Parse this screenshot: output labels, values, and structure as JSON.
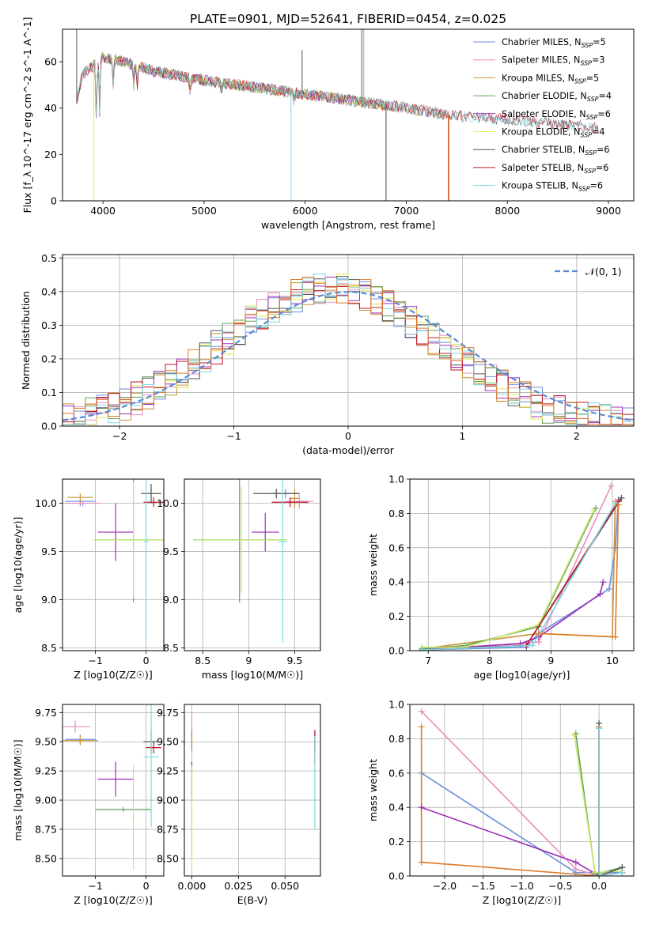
{
  "figure": {
    "title": "PLATE=0901, MJD=52641, FIBERID=0454, z=0.025"
  },
  "chart_data": [
    {
      "id": "spectrum",
      "type": "line",
      "xlabel": "wavelength [Angstrom, rest frame]",
      "ylabel": "Flux [f_λ 10^-17 erg cm^-2 s^-1 A^-1]",
      "xlim": [
        3600,
        9250
      ],
      "ylim": [
        0,
        74
      ],
      "xticks": [
        4000,
        5000,
        6000,
        7000,
        8000,
        9000
      ],
      "yticks": [
        0,
        20,
        40,
        60
      ],
      "grid": false,
      "legend_position": "top-right",
      "series": [
        {
          "name": "Chabrier MILES, N_SSP=5",
          "legend": [
            "Chabrier MILES, N",
            "SSP",
            "=5"
          ],
          "color": "#6b8fd9",
          "range": [
            3740,
            7400
          ]
        },
        {
          "name": "Salpeter MILES, N_SSP=3",
          "legend": [
            "Salpeter MILES, N",
            "SSP",
            "=3"
          ],
          "color": "#e88fbe",
          "range": [
            3740,
            7400
          ]
        },
        {
          "name": "Kroupa MILES, N_SSP=5",
          "legend": [
            "Kroupa MILES, N",
            "SSP",
            "=5"
          ],
          "color": "#c8923a",
          "range": [
            3740,
            7400
          ]
        },
        {
          "name": "Chabrier ELODIE, N_SSP=4",
          "legend": [
            "Chabrier ELODIE, N",
            "SSP",
            "=4"
          ],
          "color": "#62a05a",
          "range": [
            3900,
            6800
          ]
        },
        {
          "name": "Salpeter ELODIE, N_SSP=6",
          "legend": [
            "Salpeter ELODIE, N",
            "SSP",
            "=6"
          ],
          "color": "#9b30b8",
          "range": [
            3900,
            6800
          ]
        },
        {
          "name": "Kroupa ELODIE, N_SSP=4",
          "legend": [
            "Kroupa ELODIE, N",
            "SSP",
            "=4"
          ],
          "color": "#e4e85a",
          "range": [
            3900,
            6800
          ]
        },
        {
          "name": "Chabrier STELIB, N_SSP=6",
          "legend": [
            "Chabrier STELIB, N",
            "SSP",
            "=6"
          ],
          "color": "#555555",
          "range": [
            3740,
            8900
          ]
        },
        {
          "name": "Salpeter STELIB, N_SSP=6",
          "legend": [
            "Salpeter STELIB, N",
            "SSP",
            "=6"
          ],
          "color": "#c0152a",
          "range": [
            3740,
            8900
          ]
        },
        {
          "name": "Kroupa STELIB, N_SSP=6",
          "legend": [
            "Kroupa STELIB, N",
            "SSP",
            "=6"
          ],
          "color": "#7fd8e0",
          "range": [
            3740,
            8900
          ]
        }
      ],
      "continuum": [
        [
          3740,
          42
        ],
        [
          3800,
          55
        ],
        [
          3900,
          58
        ],
        [
          4000,
          62
        ],
        [
          4200,
          60
        ],
        [
          4500,
          56
        ],
        [
          5000,
          52
        ],
        [
          5500,
          49
        ],
        [
          6000,
          46
        ],
        [
          6500,
          43
        ],
        [
          7000,
          40
        ],
        [
          7400,
          37
        ],
        [
          8000,
          35
        ],
        [
          8500,
          33
        ],
        [
          9000,
          31
        ]
      ]
    },
    {
      "id": "residuals",
      "type": "histogram",
      "xlabel": "(data-model)/error",
      "ylabel": "Normed distribution",
      "xlim": [
        -2.5,
        2.5
      ],
      "ylim": [
        0,
        0.51
      ],
      "xticks": [
        -2,
        -1,
        0,
        1,
        2
      ],
      "yticks": [
        0.0,
        0.1,
        0.2,
        0.3,
        0.4,
        0.5
      ],
      "grid": true,
      "legend_position": "top-right",
      "normal_label": "𝒩(0, 1)",
      "normal_color": "#5b8ad6",
      "bin_width": 0.1
    },
    {
      "id": "age-vs-Z",
      "type": "scatter",
      "xlabel": "Z [log10(Z/Z☉)]",
      "ylabel": "age [log10(age/yr)]",
      "xlim": [
        -1.65,
        0.35
      ],
      "ylim": [
        8.47,
        10.25
      ],
      "xticks": [
        -1,
        0
      ],
      "yticks": [
        8.5,
        9.0,
        9.5,
        10.0
      ],
      "grid": true,
      "points": [
        {
          "x": -1.3,
          "y": 10.02,
          "xerr": 0.3,
          "yerr": 0.05,
          "color": "#6b8fd9"
        },
        {
          "x": -1.25,
          "y": 10.0,
          "xerr": 0.35,
          "yerr": 0.03,
          "color": "#e88fbe"
        },
        {
          "x": -1.3,
          "y": 10.06,
          "xerr": 0.25,
          "yerr": 0.04,
          "color": "#c8923a"
        },
        {
          "x": -0.25,
          "y": 9.62,
          "xerr": 0.75,
          "yerr": 0.65,
          "color": "#62a05a"
        },
        {
          "x": -0.6,
          "y": 9.7,
          "xerr": 0.35,
          "yerr": 0.3,
          "color": "#9b30b8"
        },
        {
          "x": -0.25,
          "y": 9.62,
          "xerr": 0.8,
          "yerr": 0.6,
          "color": "#c8e86a"
        },
        {
          "x": 0.1,
          "y": 10.1,
          "xerr": 0.2,
          "yerr": 0.1,
          "color": "#555555"
        },
        {
          "x": 0.15,
          "y": 10.01,
          "xerr": 0.2,
          "yerr": 0.05,
          "color": "#c0152a"
        },
        {
          "x": 0.0,
          "y": 9.6,
          "xerr": 0.05,
          "yerr": 1.05,
          "color": "#7fd8e0"
        }
      ]
    },
    {
      "id": "age-vs-mass",
      "type": "scatter",
      "xlabel": "mass [log10(M/M☉)]",
      "ylabel": "",
      "xlim": [
        8.3,
        9.78
      ],
      "ylim": [
        8.47,
        10.25
      ],
      "xticks": [
        8.5,
        9.0,
        9.5
      ],
      "yticks": [
        8.5,
        9.0,
        9.5,
        10.0
      ],
      "grid": true,
      "points": [
        {
          "x": 9.4,
          "y": 10.1,
          "xerr": 0.15,
          "yerr": 0.05,
          "color": "#6b8fd9"
        },
        {
          "x": 9.55,
          "y": 10.02,
          "xerr": 0.15,
          "yerr": 0.08,
          "color": "#e88fbe"
        },
        {
          "x": 9.5,
          "y": 10.05,
          "xerr": 0.05,
          "yerr": 0.1,
          "color": "#c8923a"
        },
        {
          "x": 8.9,
          "y": 9.62,
          "xerr": 0.5,
          "yerr": 0.65,
          "color": "#62a05a"
        },
        {
          "x": 9.18,
          "y": 9.7,
          "xerr": 0.15,
          "yerr": 0.2,
          "color": "#9b30b8"
        },
        {
          "x": 8.92,
          "y": 9.62,
          "xerr": 0.5,
          "yerr": 0.55,
          "color": "#c8e86a"
        },
        {
          "x": 9.3,
          "y": 10.1,
          "xerr": 0.25,
          "yerr": 0.05,
          "color": "#555555"
        },
        {
          "x": 9.45,
          "y": 10.01,
          "xerr": 0.2,
          "yerr": 0.05,
          "color": "#c0152a"
        },
        {
          "x": 9.37,
          "y": 9.6,
          "xerr": 0.05,
          "yerr": 1.05,
          "color": "#7fd8e0"
        }
      ]
    },
    {
      "id": "weight-vs-age",
      "type": "line",
      "xlabel": "age [log10(age/yr)]",
      "ylabel": "mass weight",
      "xlim": [
        6.7,
        10.35
      ],
      "ylim": [
        0,
        1.0
      ],
      "xticks": [
        7,
        8,
        9,
        10
      ],
      "yticks": [
        0.0,
        0.2,
        0.4,
        0.6,
        0.8,
        1.0
      ],
      "grid": true,
      "series": [
        {
          "color": "#6b8fd9",
          "points": [
            [
              6.9,
              0.005
            ],
            [
              8.6,
              0.02
            ],
            [
              8.8,
              0.1
            ],
            [
              9.95,
              0.36
            ],
            [
              10.05,
              0.6
            ],
            [
              10.1,
              0.88
            ]
          ]
        },
        {
          "color": "#e88fbe",
          "points": [
            [
              6.9,
              0.005
            ],
            [
              8.8,
              0.05
            ],
            [
              9.98,
              0.96
            ]
          ]
        },
        {
          "color": "#c8923a",
          "points": [
            [
              6.9,
              0.01
            ],
            [
              8.8,
              0.1
            ],
            [
              10.0,
              0.08
            ],
            [
              10.05,
              0.87
            ]
          ]
        },
        {
          "color": "#62a05a",
          "points": [
            [
              6.9,
              0.01
            ],
            [
              7.6,
              0.03
            ],
            [
              8.8,
              0.14
            ],
            [
              9.73,
              0.83
            ]
          ]
        },
        {
          "color": "#9b30b8",
          "points": [
            [
              6.9,
              0.005
            ],
            [
              8.5,
              0.04
            ],
            [
              8.8,
              0.08
            ],
            [
              9.8,
              0.33
            ],
            [
              9.85,
              0.4
            ]
          ]
        },
        {
          "color": "#c8e86a",
          "points": [
            [
              6.9,
              0.02
            ],
            [
              7.6,
              0.02
            ],
            [
              8.8,
              0.15
            ],
            [
              9.7,
              0.82
            ]
          ]
        },
        {
          "color": "#555555",
          "points": [
            [
              6.9,
              0.005
            ],
            [
              8.6,
              0.03
            ],
            [
              10.15,
              0.89
            ]
          ]
        },
        {
          "color": "#c0152a",
          "points": [
            [
              6.9,
              0.005
            ],
            [
              8.6,
              0.03
            ],
            [
              10.1,
              0.87
            ]
          ]
        },
        {
          "color": "#7fd8e0",
          "points": [
            [
              6.9,
              0.005
            ],
            [
              8.7,
              0.03
            ],
            [
              10.05,
              0.86
            ]
          ]
        },
        {
          "color": "#e07b2a",
          "points": [
            [
              8.8,
              0.1
            ],
            [
              10.05,
              0.08
            ],
            [
              10.1,
              0.85
            ]
          ]
        }
      ]
    },
    {
      "id": "mass-vs-Z",
      "type": "scatter",
      "xlabel": "Z [log10(Z/Z☉)]",
      "ylabel": "mass [log10(M/M☉)]",
      "xlim": [
        -1.65,
        0.35
      ],
      "ylim": [
        8.35,
        9.82
      ],
      "xticks": [
        -1,
        0
      ],
      "yticks": [
        8.5,
        8.75,
        9.0,
        9.25,
        9.5,
        9.75
      ],
      "grid": true,
      "points": [
        {
          "x": -1.3,
          "y": 9.52,
          "xerr": 0.3,
          "yerr": 0.04,
          "color": "#6b8fd9"
        },
        {
          "x": -1.4,
          "y": 9.63,
          "xerr": 0.3,
          "yerr": 0.05,
          "color": "#e88fbe"
        },
        {
          "x": -1.3,
          "y": 9.51,
          "xerr": 0.35,
          "yerr": 0.04,
          "color": "#c8923a"
        },
        {
          "x": -0.45,
          "y": 8.92,
          "xerr": 0.55,
          "yerr": 0.02,
          "color": "#62a05a"
        },
        {
          "x": -0.6,
          "y": 9.18,
          "xerr": 0.35,
          "yerr": 0.15,
          "color": "#9b30b8"
        },
        {
          "x": -0.25,
          "y": 8.85,
          "xerr": 0.02,
          "yerr": 0.45,
          "color": "#c8e86a"
        },
        {
          "x": 0.1,
          "y": 9.5,
          "xerr": 0.15,
          "yerr": 0.1,
          "color": "#555555"
        },
        {
          "x": 0.15,
          "y": 9.45,
          "xerr": 0.15,
          "yerr": 0.05,
          "color": "#c0152a"
        },
        {
          "x": 0.1,
          "y": 9.37,
          "xerr": 0.15,
          "yerr": 0.6,
          "color": "#7fd8e0"
        }
      ]
    },
    {
      "id": "mass-vs-EBV",
      "type": "scatter",
      "xlabel": "E(B-V)",
      "ylabel": "",
      "xlim": [
        -0.004,
        0.069
      ],
      "ylim": [
        8.35,
        9.82
      ],
      "xticks": [
        0.0,
        0.025,
        0.05
      ],
      "xtick_labels": [
        "0.000",
        "0.025",
        "0.050"
      ],
      "yticks": [
        8.5,
        8.75,
        9.0,
        9.25,
        9.5,
        9.75
      ],
      "grid": true,
      "points": [
        {
          "x": 0.0,
          "y": 9.52,
          "xerr": 0.0,
          "yerr": 0.1,
          "color": "#6b8fd9"
        },
        {
          "x": 0.0,
          "y": 9.63,
          "xerr": 0.0,
          "yerr": 0.12,
          "color": "#e88fbe"
        },
        {
          "x": 0.0,
          "y": 9.51,
          "xerr": 0.0,
          "yerr": 0.08,
          "color": "#c8923a"
        },
        {
          "x": 0.0,
          "y": 8.92,
          "xerr": 0.0,
          "yerr": 0.4,
          "color": "#62a05a"
        },
        {
          "x": 0.0,
          "y": 9.18,
          "xerr": 0.0,
          "yerr": 0.15,
          "color": "#9b30b8"
        },
        {
          "x": 0.0,
          "y": 8.85,
          "xerr": 0.0,
          "yerr": 0.45,
          "color": "#c8e86a"
        },
        {
          "x": 0.066,
          "y": 9.5,
          "xerr": 0.0,
          "yerr": 0.1,
          "color": "#555555"
        },
        {
          "x": 0.066,
          "y": 9.45,
          "xerr": 0.0,
          "yerr": 0.15,
          "color": "#c0152a"
        },
        {
          "x": 0.066,
          "y": 9.15,
          "xerr": 0.0,
          "yerr": 0.4,
          "color": "#7fd8e0"
        }
      ]
    },
    {
      "id": "weight-vs-Z",
      "type": "line",
      "xlabel": "Z [log10(Z/Z☉)]",
      "ylabel": "mass weight",
      "xlim": [
        -2.45,
        0.45
      ],
      "ylim": [
        0,
        1.0
      ],
      "xticks": [
        -2.0,
        -1.5,
        -1.0,
        -0.5,
        0.0
      ],
      "xtick_labels": [
        "−2.0",
        "−1.5",
        "−1.0",
        "−0.5",
        "0.0"
      ],
      "yticks": [
        0.0,
        0.2,
        0.4,
        0.6,
        0.8,
        1.0
      ],
      "grid": true,
      "series": [
        {
          "color": "#6b8fd9",
          "points": [
            [
              -2.3,
              0.6
            ],
            [
              -0.3,
              0.02
            ],
            [
              0.0,
              0.02
            ],
            [
              0.3,
              0.02
            ]
          ]
        },
        {
          "color": "#e88fbe",
          "points": [
            [
              -2.3,
              0.96
            ],
            [
              -0.3,
              0.04
            ],
            [
              0.0,
              0.0
            ]
          ]
        },
        {
          "color": "#e07b2a",
          "points": [
            [
              -2.3,
              0.87
            ],
            [
              -2.3,
              0.08
            ],
            [
              0.0,
              0.0
            ],
            [
              0.0,
              0.87
            ]
          ]
        },
        {
          "color": "#9b30b8",
          "points": [
            [
              -2.3,
              0.4
            ],
            [
              -0.3,
              0.08
            ],
            [
              0.0,
              0.0
            ]
          ]
        },
        {
          "color": "#62a05a",
          "points": [
            [
              -0.3,
              0.83
            ],
            [
              -0.05,
              0.01
            ],
            [
              0.3,
              0.05
            ]
          ]
        },
        {
          "color": "#c8e86a",
          "points": [
            [
              -0.32,
              0.82
            ],
            [
              -0.05,
              0.02
            ],
            [
              0.3,
              0.03
            ]
          ]
        },
        {
          "color": "#555555",
          "points": [
            [
              0.0,
              0.89
            ],
            [
              0.0,
              0.0
            ],
            [
              0.3,
              0.05
            ]
          ]
        },
        {
          "color": "#c0152a",
          "points": [
            [
              0.0,
              0.86
            ],
            [
              0.0,
              0.0
            ],
            [
              0.3,
              0.02
            ]
          ]
        },
        {
          "color": "#7fd8e0",
          "points": [
            [
              0.0,
              0.86
            ],
            [
              0.0,
              0.0
            ],
            [
              0.3,
              0.02
            ]
          ]
        }
      ]
    }
  ]
}
